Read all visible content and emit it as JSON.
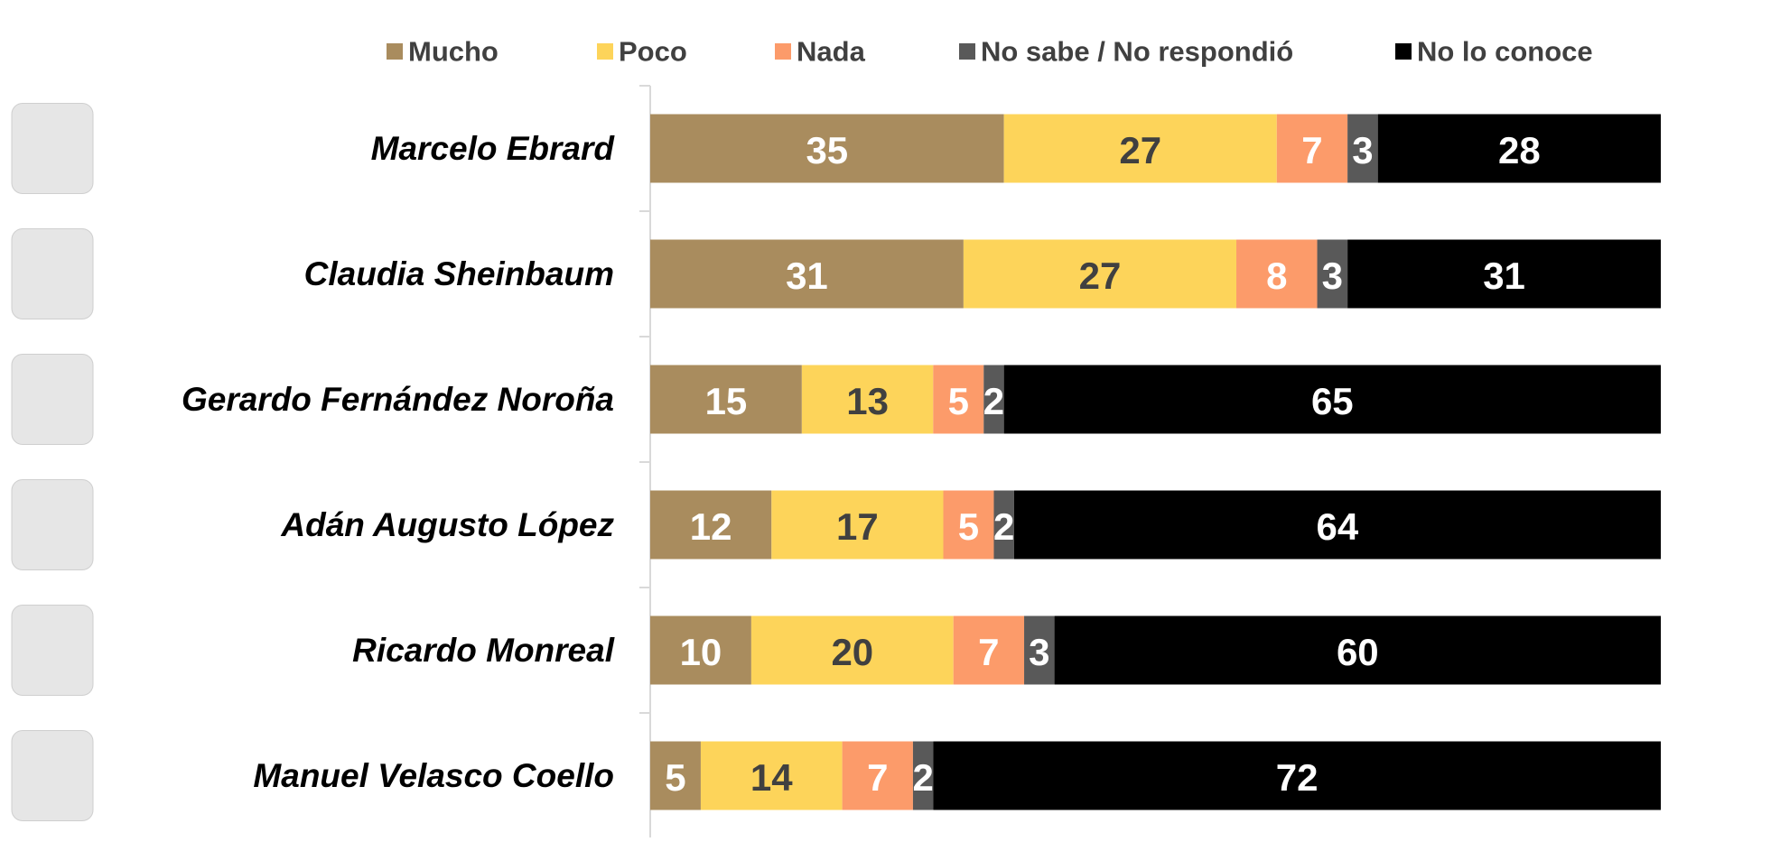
{
  "chart_data": {
    "type": "stacked-barh",
    "categories": [
      "Marcelo Ebrard",
      "Claudia Sheinbaum",
      "Gerardo Fernández Noroña",
      "Adán Augusto López",
      "Ricardo Monreal",
      "Manuel Velasco Coello"
    ],
    "series": [
      {
        "name": "Mucho",
        "color": "#a98c5e",
        "label_color": "#ffffff",
        "values": [
          35,
          31,
          15,
          12,
          10,
          5
        ]
      },
      {
        "name": "Poco",
        "color": "#fdd45a",
        "label_color": "#404040",
        "values": [
          27,
          27,
          13,
          17,
          20,
          14
        ]
      },
      {
        "name": "Nada",
        "color": "#fc9b6a",
        "label_color": "#ffffff",
        "values": [
          7,
          8,
          5,
          5,
          7,
          7
        ]
      },
      {
        "name": "No sabe / No respondió",
        "color": "#595959",
        "label_color": "#ffffff",
        "values": [
          3,
          3,
          2,
          2,
          3,
          2
        ]
      },
      {
        "name": "No lo conoce",
        "color": "#000000",
        "label_color": "#ffffff",
        "values": [
          28,
          31,
          65,
          64,
          60,
          72
        ]
      }
    ],
    "xlim": [
      0,
      100
    ],
    "legend": "top"
  }
}
